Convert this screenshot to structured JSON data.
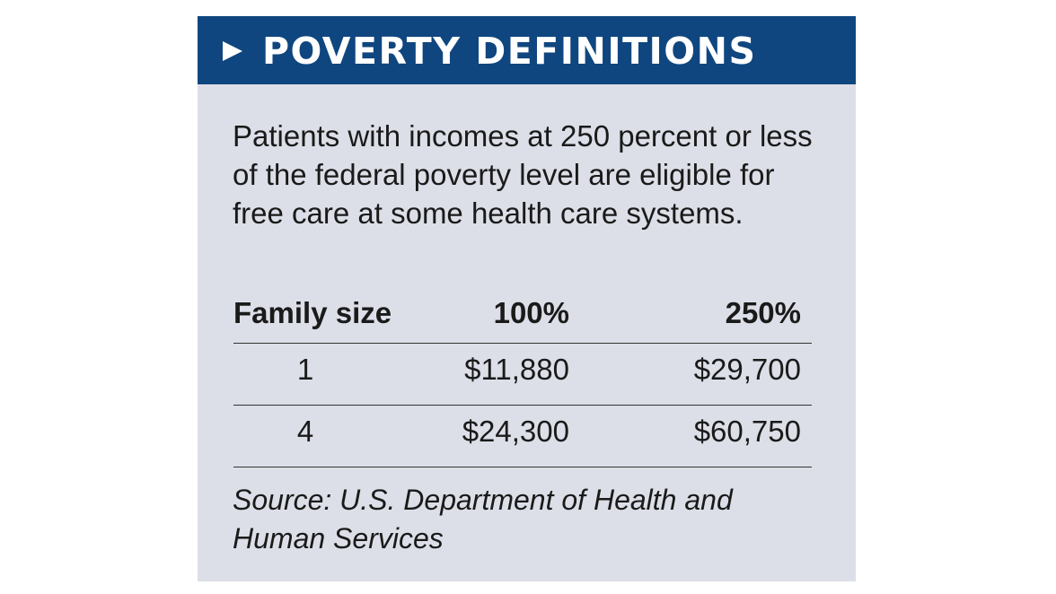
{
  "header": {
    "title": "POVERTY DEFINITIONS",
    "icon": "play-triangle-icon"
  },
  "intro": "Patients with incomes at 250 percent or less of the federal poverty level are eligible for free care at some health care systems.",
  "table": {
    "columns": [
      "Family size",
      "100%",
      "250%"
    ],
    "rows": [
      [
        "1",
        "$11,880",
        "$29,700"
      ],
      [
        "4",
        "$24,300",
        "$60,750"
      ]
    ]
  },
  "source": "Source: U.S. Department of Health and Human Services",
  "colors": {
    "header_bg": "#0f467f",
    "body_bg": "#dcdfe7"
  }
}
